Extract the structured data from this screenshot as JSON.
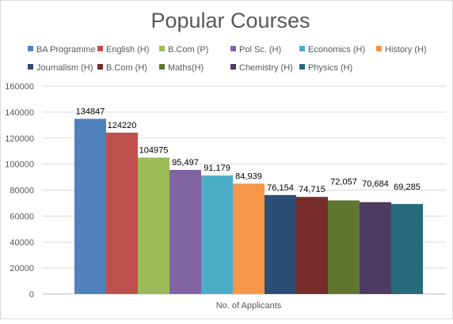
{
  "chart_data": {
    "type": "bar",
    "title": "Popular Courses",
    "xlabel": "",
    "ylabel": "",
    "categories": [
      "No. of Applicants"
    ],
    "series": [
      {
        "name": "BA Programme",
        "values": [
          134847
        ],
        "label": "134847",
        "color": "#4f81bd"
      },
      {
        "name": "English (H)",
        "values": [
          124220
        ],
        "label": "124220",
        "color": "#c0504d"
      },
      {
        "name": "B.Com (P)",
        "values": [
          104975
        ],
        "label": "104975",
        "color": "#9bbb59"
      },
      {
        "name": "Pol Sc. (H)",
        "values": [
          95497
        ],
        "label": "95,497",
        "color": "#8064a2"
      },
      {
        "name": "Economics (H)",
        "values": [
          91179
        ],
        "label": "91,179",
        "color": "#4bacc6"
      },
      {
        "name": "History (H)",
        "values": [
          84939
        ],
        "label": "84,939",
        "color": "#f79646"
      },
      {
        "name": "Journalism (H)",
        "values": [
          76154
        ],
        "label": "76,154",
        "color": "#2c4d75"
      },
      {
        "name": "B.Com (H)",
        "values": [
          74715
        ],
        "label": "74,715",
        "color": "#772c2a"
      },
      {
        "name": "Maths(H)",
        "values": [
          72057
        ],
        "label": "72,057",
        "color": "#5f7530"
      },
      {
        "name": "Chemistry (H)",
        "values": [
          70684
        ],
        "label": "70,684",
        "color": "#4d3b62"
      },
      {
        "name": "Physics (H)",
        "values": [
          69285
        ],
        "label": "69,285",
        "color": "#276a7c"
      }
    ],
    "ylim": [
      0,
      160000
    ],
    "yticks": [
      "0",
      "20000",
      "40000",
      "60000",
      "80000",
      "100000",
      "120000",
      "140000",
      "160000"
    ],
    "grid": true,
    "legend_position": "top"
  }
}
